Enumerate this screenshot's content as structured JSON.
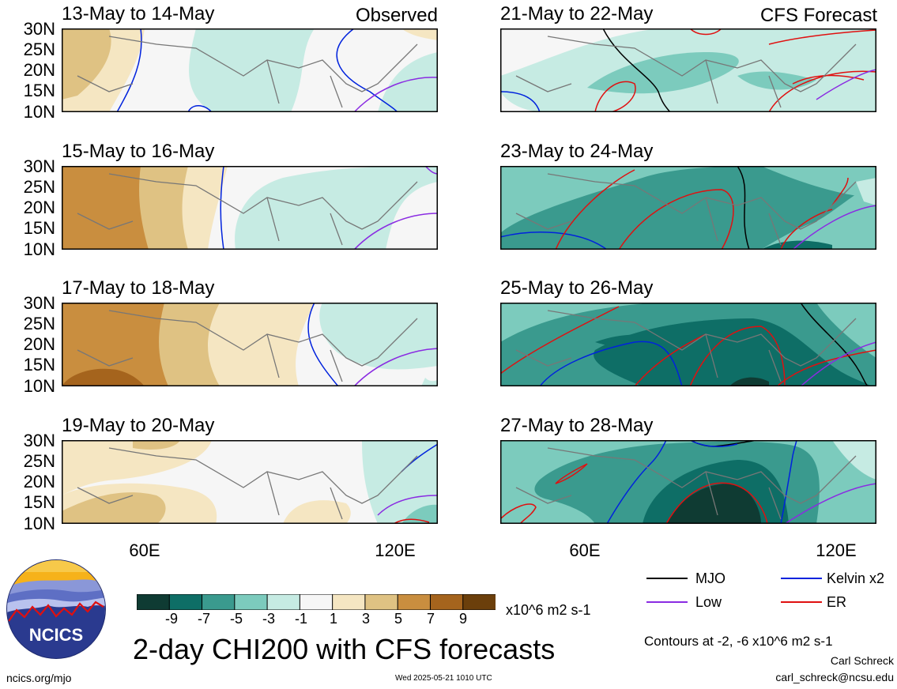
{
  "panels": [
    {
      "title": "13-May to 14-May",
      "tag": "Observed"
    },
    {
      "title": "21-May to 22-May",
      "tag": "CFS Forecast"
    },
    {
      "title": "15-May to 16-May",
      "tag": ""
    },
    {
      "title": "23-May to 24-May",
      "tag": ""
    },
    {
      "title": "17-May to 18-May",
      "tag": ""
    },
    {
      "title": "25-May to 26-May",
      "tag": ""
    },
    {
      "title": "19-May to 20-May",
      "tag": ""
    },
    {
      "title": "27-May to 28-May",
      "tag": ""
    }
  ],
  "axes": {
    "lat_labels": [
      "30N",
      "25N",
      "20N",
      "15N",
      "10N"
    ],
    "lon_labels": [
      "60E",
      "120E"
    ]
  },
  "colorbar": {
    "labels": [
      "-9",
      "-7",
      "-5",
      "-3",
      "-1",
      "1",
      "3",
      "5",
      "7",
      "9"
    ],
    "colors": [
      "#0f3b33",
      "#0e6e66",
      "#3a9a8e",
      "#7ccbbd",
      "#c6ebe3",
      "#f6f6f6",
      "#f5e6c2",
      "#dfc283",
      "#c98e3f",
      "#a5641d",
      "#6b3f0b"
    ],
    "units": "x10^6 m2 s-1"
  },
  "legend": {
    "items": [
      {
        "label": "MJO",
        "color": "#000000"
      },
      {
        "label": "Kelvin x2",
        "color": "#0022dd"
      },
      {
        "label": "Low",
        "color": "#8a2be2"
      },
      {
        "label": "ER",
        "color": "#e01010"
      }
    ],
    "contour_note": "Contours at -2, -6 x10^6 m2 s-1"
  },
  "title": "2-day CHI200 with CFS forecasts",
  "logo_text": "NCICS",
  "footer": {
    "url": "ncics.org/mjo",
    "timestamp": "Wed 2025-05-21 1010 UTC",
    "author": "Carl Schreck",
    "email": "carl_schreck@ncsu.edu"
  }
}
